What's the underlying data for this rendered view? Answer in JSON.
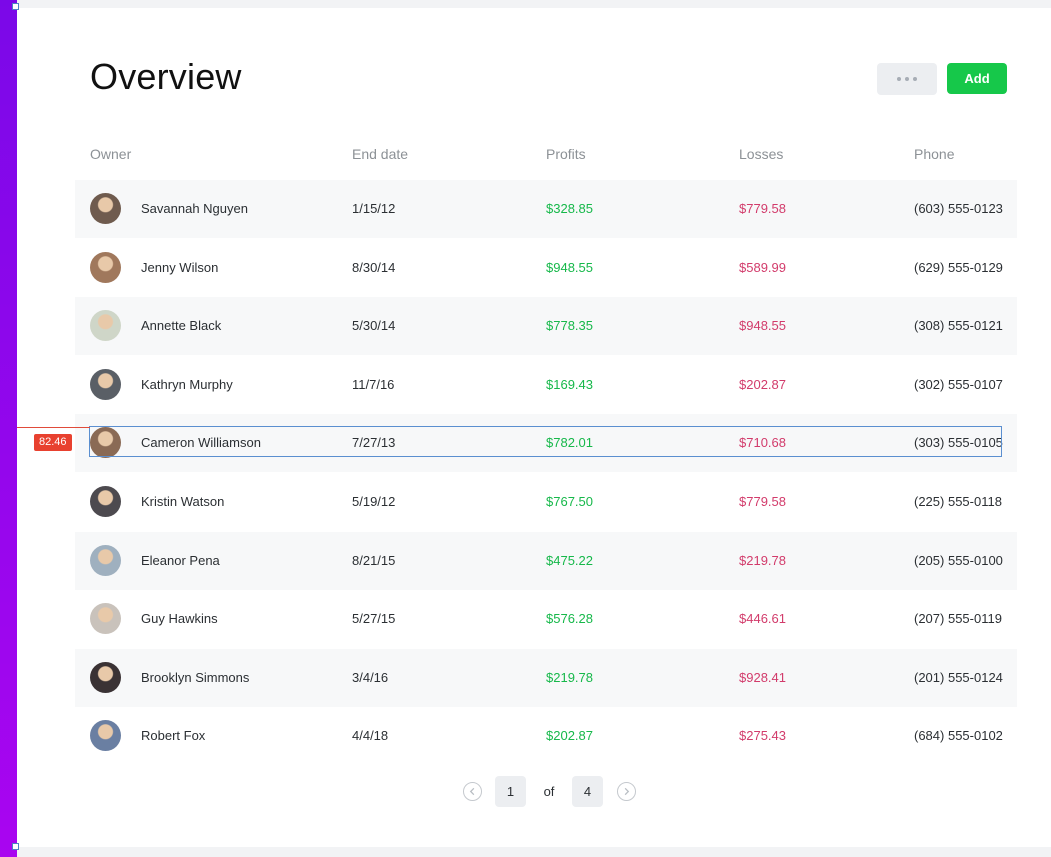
{
  "page": {
    "title": "Overview"
  },
  "toolbar": {
    "more_icon": "ellipsis-icon",
    "add_label": "Add"
  },
  "table": {
    "columns": [
      "Owner",
      "End date",
      "Profits",
      "Losses",
      "Phone"
    ],
    "rows": [
      {
        "name": "Savannah Nguyen",
        "end_date": "1/15/12",
        "profit": "$328.85",
        "loss": "$779.58",
        "phone": "(603) 555-0123"
      },
      {
        "name": "Jenny Wilson",
        "end_date": "8/30/14",
        "profit": "$948.55",
        "loss": "$589.99",
        "phone": "(629) 555-0129"
      },
      {
        "name": "Annette Black",
        "end_date": "5/30/14",
        "profit": "$778.35",
        "loss": "$948.55",
        "phone": "(308) 555-0121"
      },
      {
        "name": "Kathryn Murphy",
        "end_date": "11/7/16",
        "profit": "$169.43",
        "loss": "$202.87",
        "phone": "(302) 555-0107"
      },
      {
        "name": "Cameron Williamson",
        "end_date": "7/27/13",
        "profit": "$782.01",
        "loss": "$710.68",
        "phone": "(303) 555-0105"
      },
      {
        "name": "Kristin Watson",
        "end_date": "5/19/12",
        "profit": "$767.50",
        "loss": "$779.58",
        "phone": "(225) 555-0118"
      },
      {
        "name": "Eleanor Pena",
        "end_date": "8/21/15",
        "profit": "$475.22",
        "loss": "$219.78",
        "phone": "(205) 555-0100"
      },
      {
        "name": "Guy Hawkins",
        "end_date": "5/27/15",
        "profit": "$576.28",
        "loss": "$446.61",
        "phone": "(207) 555-0119"
      },
      {
        "name": "Brooklyn Simmons",
        "end_date": "3/4/16",
        "profit": "$219.78",
        "loss": "$928.41",
        "phone": "(201) 555-0124"
      },
      {
        "name": "Robert Fox",
        "end_date": "4/4/18",
        "profit": "$202.87",
        "loss": "$275.43",
        "phone": "(684) 555-0102"
      }
    ]
  },
  "measure": {
    "label": "82.46"
  },
  "pagination": {
    "current": "1",
    "of_label": "of",
    "total": "4",
    "prev_icon": "chevron-left-icon",
    "next_icon": "chevron-right-icon"
  },
  "colors": {
    "accent": "#16c84a",
    "profit": "#16b84a",
    "loss": "#d23b6b",
    "selection": "#5b8fd0",
    "sidebar_start": "#7b08e8",
    "sidebar_end": "#a905f0"
  }
}
